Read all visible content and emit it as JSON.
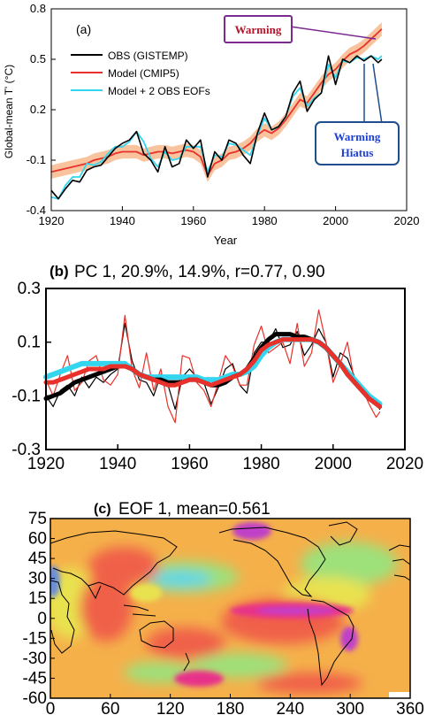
{
  "chart_data": [
    {
      "type": "line",
      "panel": "(a)",
      "xlabel": "Year",
      "ylabel": "Global-mean T' (°C)",
      "xlim": [
        1920,
        2020
      ],
      "ylim": [
        -0.4,
        0.8
      ],
      "xticks": [
        "1920",
        "1940",
        "1960",
        "1980",
        "2000",
        "2020"
      ],
      "yticks": [
        "-0.4",
        "-0.1",
        "0.2",
        "0.5",
        "0.8"
      ],
      "colors": {
        "obs": "#000000",
        "model": "#e8312a",
        "band": "#f7b98c",
        "eofs": "#33d6ee",
        "warming": "#7b2a8f",
        "hiatus": "#1f4e8c"
      },
      "annotations": {
        "warming": "Warming",
        "hiatus_line1": "Warming",
        "hiatus_line2": "Hiatus"
      },
      "x": [
        1920,
        1922,
        1924,
        1926,
        1928,
        1930,
        1932,
        1934,
        1936,
        1938,
        1940,
        1942,
        1944,
        1946,
        1948,
        1950,
        1952,
        1954,
        1956,
        1958,
        1960,
        1962,
        1964,
        1966,
        1968,
        1970,
        1972,
        1974,
        1976,
        1978,
        1980,
        1982,
        1984,
        1986,
        1988,
        1990,
        1992,
        1994,
        1996,
        1998,
        2000,
        2002,
        2004,
        2006,
        2008,
        2010,
        2012,
        2013
      ],
      "band_halfwidth": 0.04,
      "series": [
        {
          "name": "OBS (GISTEMP)",
          "key": "obs",
          "values": [
            -0.28,
            -0.33,
            -0.27,
            -0.22,
            -0.23,
            -0.16,
            -0.14,
            -0.13,
            -0.08,
            -0.03,
            0.0,
            0.02,
            0.07,
            -0.06,
            -0.1,
            -0.17,
            -0.02,
            -0.14,
            -0.12,
            0.02,
            -0.03,
            0.02,
            -0.2,
            -0.05,
            -0.1,
            0.02,
            0.0,
            -0.07,
            -0.12,
            0.06,
            0.18,
            0.08,
            0.1,
            0.16,
            0.3,
            0.37,
            0.19,
            0.26,
            0.3,
            0.52,
            0.35,
            0.5,
            0.48,
            0.52,
            0.49,
            0.52,
            0.48,
            0.5
          ]
        },
        {
          "name": "Model (CMIP5)",
          "key": "model",
          "values": [
            -0.17,
            -0.16,
            -0.15,
            -0.14,
            -0.13,
            -0.12,
            -0.1,
            -0.09,
            -0.08,
            -0.06,
            -0.05,
            -0.05,
            -0.05,
            -0.07,
            -0.06,
            -0.05,
            -0.05,
            -0.06,
            -0.05,
            -0.04,
            -0.05,
            -0.08,
            -0.19,
            -0.12,
            -0.1,
            -0.06,
            -0.05,
            -0.03,
            0.0,
            0.05,
            0.08,
            0.06,
            0.09,
            0.14,
            0.2,
            0.26,
            0.24,
            0.3,
            0.36,
            0.41,
            0.44,
            0.49,
            0.53,
            0.55,
            0.58,
            0.62,
            0.66,
            0.68
          ]
        },
        {
          "name": "Model + 2 OBS EOFs",
          "key": "eofs",
          "values": [
            -0.32,
            -0.33,
            -0.25,
            -0.2,
            -0.2,
            -0.12,
            -0.13,
            -0.11,
            -0.06,
            -0.02,
            -0.02,
            0.01,
            0.07,
            0.01,
            -0.09,
            -0.14,
            -0.05,
            -0.1,
            -0.09,
            -0.02,
            -0.02,
            -0.02,
            -0.17,
            -0.07,
            -0.08,
            0.0,
            -0.01,
            -0.04,
            -0.07,
            0.05,
            0.15,
            0.08,
            0.1,
            0.16,
            0.28,
            0.33,
            0.22,
            0.27,
            0.3,
            0.47,
            0.39,
            0.49,
            0.48,
            0.51,
            0.5,
            0.52,
            0.5,
            0.52
          ]
        }
      ]
    },
    {
      "type": "line",
      "panel": "(b)",
      "title": "PC 1, 20.9%, 14.9%, r=0.77, 0.90",
      "xlim": [
        1920,
        2020
      ],
      "ylim": [
        -0.3,
        0.3
      ],
      "xticks": [
        "1920",
        "1940",
        "1960",
        "1980",
        "2000",
        "2020"
      ],
      "yticks": [
        "0.3",
        "0.1",
        "-0.1",
        "-0.3"
      ],
      "x": [
        1920,
        1922,
        1924,
        1926,
        1928,
        1930,
        1932,
        1934,
        1936,
        1938,
        1940,
        1942,
        1944,
        1946,
        1948,
        1950,
        1952,
        1954,
        1956,
        1958,
        1960,
        1962,
        1964,
        1966,
        1968,
        1970,
        1972,
        1974,
        1976,
        1978,
        1980,
        1982,
        1984,
        1986,
        1988,
        1990,
        1992,
        1994,
        1996,
        1998,
        2000,
        2002,
        2004,
        2006,
        2008,
        2010,
        2012,
        2013
      ],
      "series": [
        {
          "key": "obs_raw",
          "color": "#000000",
          "width": 1.2,
          "values": [
            -0.1,
            -0.14,
            -0.08,
            -0.06,
            -0.1,
            -0.03,
            -0.07,
            -0.03,
            -0.05,
            -0.02,
            0.0,
            0.17,
            0.03,
            -0.04,
            -0.05,
            -0.1,
            -0.02,
            -0.06,
            -0.15,
            -0.03,
            0.0,
            -0.03,
            -0.05,
            -0.13,
            -0.07,
            0.0,
            0.02,
            -0.06,
            -0.09,
            0.06,
            0.1,
            0.1,
            0.15,
            0.08,
            0.09,
            0.14,
            0.05,
            0.09,
            0.15,
            0.1,
            -0.03,
            0.06,
            0.04,
            -0.03,
            -0.08,
            -0.1,
            -0.13,
            -0.15
          ]
        },
        {
          "key": "model_raw",
          "color": "#e8312a",
          "width": 1.2,
          "values": [
            -0.04,
            -0.1,
            -0.02,
            0.05,
            -0.08,
            -0.05,
            0.03,
            0.05,
            -0.04,
            -0.06,
            -0.02,
            0.2,
            0.0,
            -0.07,
            0.06,
            -0.08,
            0.0,
            -0.14,
            -0.2,
            0.05,
            0.04,
            -0.05,
            -0.08,
            -0.14,
            -0.05,
            0.05,
            0.01,
            -0.06,
            -0.06,
            0.09,
            0.16,
            0.06,
            0.08,
            0.1,
            0.02,
            0.17,
            0.01,
            0.06,
            0.22,
            0.1,
            -0.05,
            0.02,
            0.1,
            -0.05,
            -0.07,
            -0.13,
            -0.18,
            -0.16
          ]
        },
        {
          "key": "eofs_smooth",
          "color": "#33d6ee",
          "width": 6,
          "values": [
            -0.03,
            -0.02,
            -0.01,
            0.0,
            0.01,
            0.02,
            0.02,
            0.02,
            0.02,
            0.02,
            0.02,
            0.02,
            0.0,
            -0.02,
            -0.03,
            -0.03,
            -0.03,
            -0.03,
            -0.03,
            -0.03,
            -0.03,
            -0.03,
            -0.04,
            -0.04,
            -0.04,
            -0.03,
            -0.02,
            -0.02,
            -0.01,
            0.01,
            0.05,
            0.08,
            0.1,
            0.11,
            0.11,
            0.11,
            0.11,
            0.11,
            0.1,
            0.08,
            0.05,
            0.02,
            -0.01,
            -0.04,
            -0.07,
            -0.1,
            -0.12,
            -0.13
          ]
        },
        {
          "key": "obs_smooth",
          "color": "#000000",
          "width": 5,
          "values": [
            -0.11,
            -0.1,
            -0.09,
            -0.07,
            -0.05,
            -0.04,
            -0.03,
            -0.02,
            -0.01,
            0.0,
            0.01,
            0.01,
            0.0,
            -0.02,
            -0.03,
            -0.04,
            -0.04,
            -0.05,
            -0.05,
            -0.05,
            -0.04,
            -0.04,
            -0.05,
            -0.06,
            -0.06,
            -0.05,
            -0.03,
            -0.02,
            0.0,
            0.04,
            0.08,
            0.11,
            0.13,
            0.13,
            0.13,
            0.12,
            0.12,
            0.11,
            0.1,
            0.08,
            0.05,
            0.02,
            -0.02,
            -0.05,
            -0.08,
            -0.11,
            -0.13,
            -0.14
          ]
        },
        {
          "key": "model_smooth",
          "color": "#e8312a",
          "width": 5,
          "values": [
            -0.05,
            -0.05,
            -0.04,
            -0.03,
            -0.02,
            -0.01,
            0.0,
            0.0,
            0.0,
            0.01,
            0.01,
            0.01,
            0.0,
            -0.02,
            -0.03,
            -0.04,
            -0.05,
            -0.06,
            -0.06,
            -0.05,
            -0.04,
            -0.04,
            -0.05,
            -0.06,
            -0.05,
            -0.04,
            -0.03,
            -0.02,
            0.0,
            0.03,
            0.07,
            0.09,
            0.1,
            0.11,
            0.11,
            0.11,
            0.11,
            0.11,
            0.1,
            0.08,
            0.05,
            0.02,
            -0.02,
            -0.05,
            -0.08,
            -0.11,
            -0.13,
            -0.14
          ]
        }
      ]
    },
    {
      "type": "heatmap",
      "panel": "(c)",
      "title": "EOF 1, mean=0.561",
      "xlim": [
        0,
        360
      ],
      "ylim": [
        -60,
        75
      ],
      "xticks": [
        "0",
        "60",
        "120",
        "180",
        "240",
        "300",
        "360"
      ],
      "yticks": [
        "75",
        "60",
        "45",
        "30",
        "15",
        "0",
        "-15",
        "-30",
        "-45",
        "-60"
      ],
      "colors": [
        "#6a8fd8",
        "#5fd4e8",
        "#9ee07a",
        "#e9e24f",
        "#f5b04a",
        "#f0604a",
        "#e8308a",
        "#c040c8"
      ]
    }
  ]
}
